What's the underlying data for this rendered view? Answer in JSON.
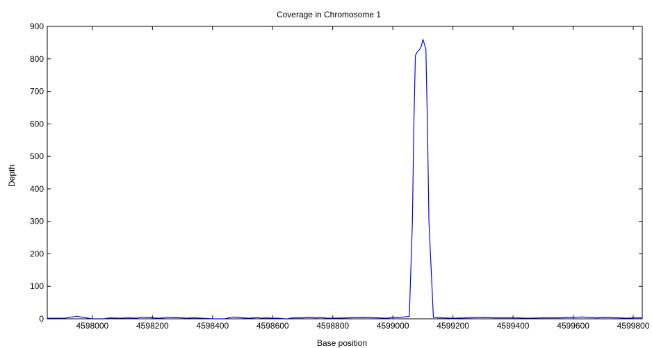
{
  "chart_data": {
    "type": "line",
    "title": "Coverage in Chromosome 1",
    "xlabel": "Base position",
    "ylabel": "Depth",
    "xlim": [
      4597850,
      4599830
    ],
    "ylim": [
      0,
      900
    ],
    "xticks": [
      4598000,
      4598200,
      4598400,
      4598600,
      4598800,
      4599000,
      4599200,
      4599400,
      4599600,
      4599800
    ],
    "xtick_labels": [
      "4598000",
      "4598200",
      "4598400",
      "4598600",
      "4598800",
      "4599000",
      "4599200",
      "4599400",
      "4599600",
      "4599800"
    ],
    "yticks": [
      0,
      100,
      200,
      300,
      400,
      500,
      600,
      700,
      800,
      900
    ],
    "ytick_labels": [
      "0",
      "100",
      "200",
      "300",
      "400",
      "500",
      "600",
      "700",
      "800",
      "900"
    ],
    "grid": false,
    "series": [
      {
        "color": "#0000ff",
        "x": [
          4597850,
          4597880,
          4597910,
          4597920,
          4597935,
          4597950,
          4597965,
          4597980,
          4598000,
          4598040,
          4598050,
          4598060,
          4598090,
          4598120,
          4598150,
          4598160,
          4598180,
          4598200,
          4598220,
          4598240,
          4598250,
          4598260,
          4598300,
          4598310,
          4598340,
          4598380,
          4598400,
          4598440,
          4598450,
          4598460,
          4598470,
          4598480,
          4598500,
          4598520,
          4598540,
          4598550,
          4598560,
          4598580,
          4598600,
          4598620,
          4598640,
          4598650,
          4598660,
          4598670,
          4598700,
          4598720,
          4598740,
          4598750,
          4598760,
          4598780,
          4598800,
          4598850,
          4598900,
          4598950,
          4598980,
          4599000,
          4599020,
          4599040,
          4599055,
          4599065,
          4599070,
          4599075,
          4599080,
          4599085,
          4599090,
          4599095,
          4599100,
          4599105,
          4599110,
          4599115,
          4599120,
          4599135,
          4599150,
          4599160,
          4599200,
          4599250,
          4599300,
          4599340,
          4599400,
          4599450,
          4599500,
          4599550,
          4599600,
          4599630,
          4599650,
          4599680,
          4599700,
          4599750,
          4599780,
          4599800,
          4599830
        ],
        "y": [
          2,
          2,
          2,
          4,
          6,
          8,
          5,
          3,
          0,
          0,
          2,
          3,
          2,
          3,
          2,
          5,
          4,
          3,
          2,
          3,
          5,
          4,
          3,
          2,
          3,
          1,
          0,
          0,
          2,
          4,
          6,
          4,
          3,
          2,
          3,
          4,
          2,
          3,
          2,
          2,
          0,
          0,
          2,
          3,
          3,
          4,
          3,
          3,
          4,
          2,
          2,
          3,
          4,
          3,
          2,
          4,
          4,
          6,
          8,
          300,
          600,
          810,
          820,
          825,
          830,
          840,
          860,
          845,
          830,
          600,
          300,
          5,
          3,
          3,
          2,
          3,
          4,
          3,
          3,
          2,
          3,
          3,
          4,
          6,
          4,
          3,
          4,
          3,
          2,
          3,
          3
        ]
      }
    ]
  }
}
